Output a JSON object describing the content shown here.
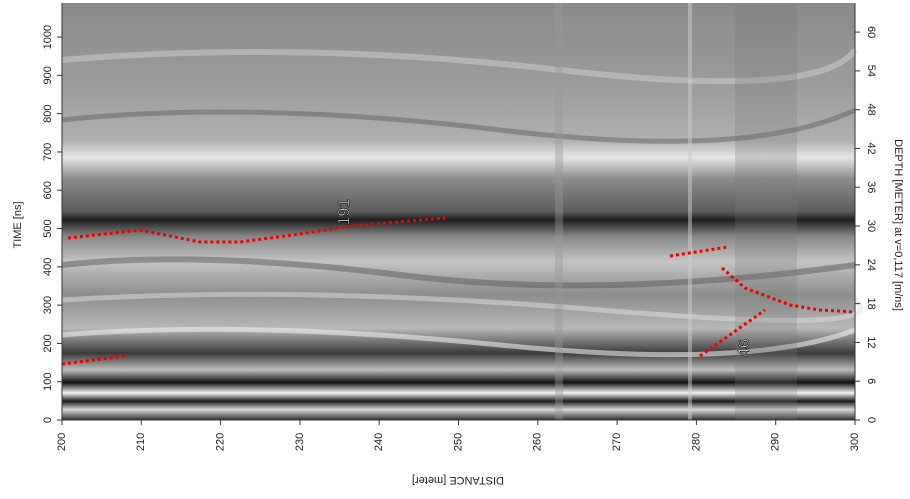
{
  "chart_data": {
    "type": "radargram",
    "xlabel": "DISTANCE [meter]",
    "ylabel": "TIME [ns]",
    "y2label": "DEPTH [METER] at v=0,117 [m/ns]",
    "xlim": [
      200,
      300
    ],
    "xticks": [
      200,
      210,
      220,
      230,
      240,
      250,
      260,
      270,
      280,
      290,
      300
    ],
    "ylim": [
      0,
      1089
    ],
    "yticks": [
      0,
      100,
      200,
      300,
      400,
      500,
      600,
      700,
      800,
      900,
      1000
    ],
    "y2lim": [
      0,
      64.5
    ],
    "y2ticks": [
      0,
      6,
      12,
      18,
      24,
      30,
      36,
      42,
      48,
      54,
      60
    ],
    "annotations": [
      "191",
      "46"
    ]
  }
}
